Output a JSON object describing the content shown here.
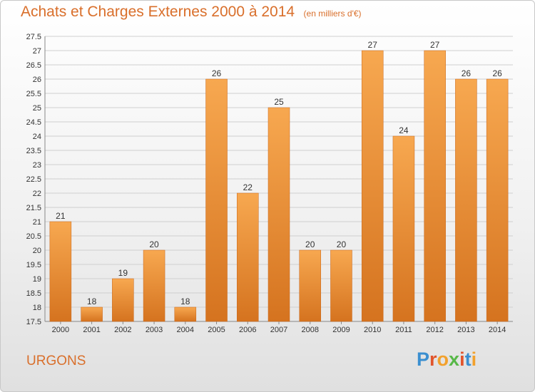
{
  "chart_data": {
    "type": "bar",
    "title": "Achats et Charges Externes 2000 à 2014",
    "subtitle": "(en milliers d'€)",
    "categories": [
      "2000",
      "2001",
      "2002",
      "2003",
      "2004",
      "2005",
      "2006",
      "2007",
      "2008",
      "2009",
      "2010",
      "2011",
      "2012",
      "2013",
      "2014"
    ],
    "values": [
      21,
      18,
      19,
      20,
      18,
      26,
      22,
      25,
      20,
      20,
      27,
      24,
      27,
      26,
      26
    ],
    "ylim": [
      17.5,
      27.5
    ],
    "yticks": [
      "17.5",
      "18",
      "18.5",
      "19",
      "19.5",
      "20",
      "20.5",
      "21",
      "21.5",
      "22",
      "22.5",
      "23",
      "23.5",
      "24",
      "24.5",
      "25",
      "25.5",
      "26",
      "26.5",
      "27",
      "27.5"
    ],
    "grid": true,
    "bar_color": "#f0a04b"
  },
  "footer": {
    "commune": "URGONS",
    "logo_text": "Proxiti",
    "logo_colors": [
      "#3b8fd0",
      "#e1542b",
      "#f2a12c",
      "#57b848",
      "#e1542b",
      "#3b8fd0",
      "#f2a12c"
    ]
  }
}
